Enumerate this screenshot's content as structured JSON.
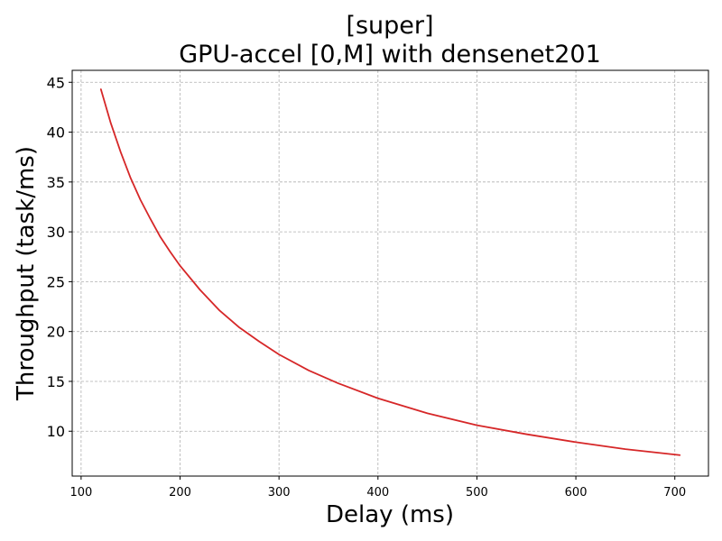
{
  "chart_data": {
    "type": "line",
    "title_line1": "[super]",
    "title_line2": "GPU-accel [0,M] with densenet201",
    "xlabel": "Delay (ms)",
    "ylabel": "Throughput (task/ms)",
    "xlim": [
      91,
      734
    ],
    "ylim": [
      5.5,
      46.2
    ],
    "xticks": [
      100,
      200,
      300,
      400,
      500,
      600,
      700
    ],
    "yticks": [
      10,
      15,
      20,
      25,
      30,
      35,
      40,
      45
    ],
    "grid": true,
    "series": [
      {
        "color": "#d62728",
        "x": [
          120,
          130,
          140,
          150,
          160,
          170,
          180,
          190,
          200,
          220,
          240,
          260,
          280,
          300,
          330,
          360,
          400,
          450,
          500,
          550,
          600,
          650,
          705
        ],
        "y": [
          44.3,
          40.9,
          38.0,
          35.4,
          33.2,
          31.3,
          29.5,
          28.0,
          26.6,
          24.2,
          22.1,
          20.4,
          19.0,
          17.7,
          16.1,
          14.8,
          13.3,
          11.8,
          10.6,
          9.7,
          8.9,
          8.2,
          7.6
        ]
      }
    ]
  }
}
